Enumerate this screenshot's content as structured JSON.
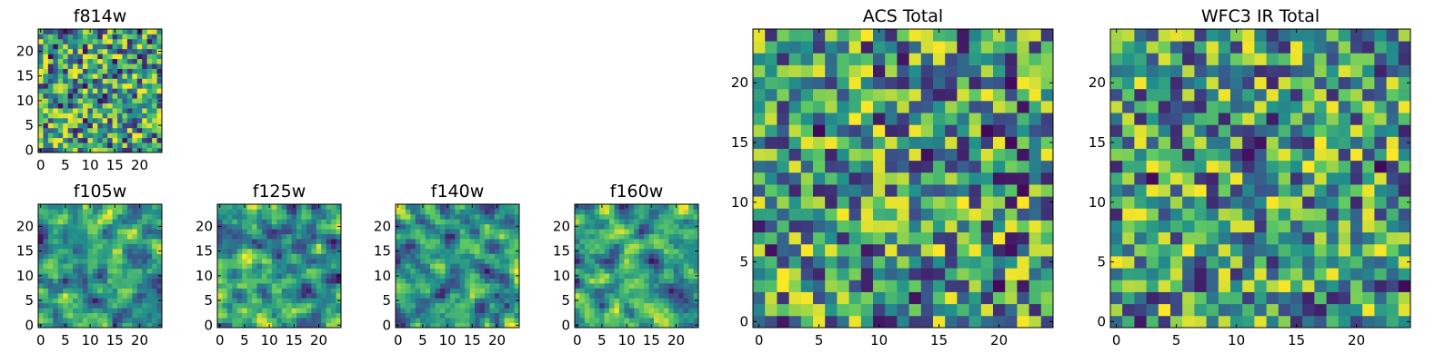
{
  "chart_data": [
    {
      "type": "heatmap",
      "title": "f814w",
      "grid": [
        25,
        25
      ],
      "seed": 11,
      "smooth": 0,
      "xticks": [
        "0",
        "5",
        "10",
        "15",
        "20"
      ],
      "yticks": [
        "0",
        "5",
        "10",
        "15",
        "20"
      ],
      "xlim": [
        -0.5,
        24.5
      ],
      "ylim": [
        -0.5,
        24.5
      ],
      "colormap": "viridis"
    },
    {
      "type": "heatmap",
      "title": "f105w",
      "grid": [
        25,
        25
      ],
      "seed": 23,
      "smooth": 1,
      "xticks": [
        "0",
        "5",
        "10",
        "15",
        "20"
      ],
      "yticks": [
        "0",
        "5",
        "10",
        "15",
        "20"
      ],
      "xlim": [
        -0.5,
        24.5
      ],
      "ylim": [
        -0.5,
        24.5
      ],
      "colormap": "viridis"
    },
    {
      "type": "heatmap",
      "title": "f125w",
      "grid": [
        25,
        25
      ],
      "seed": 37,
      "smooth": 1,
      "xticks": [
        "0",
        "5",
        "10",
        "15",
        "20"
      ],
      "yticks": [
        "0",
        "5",
        "10",
        "15",
        "20"
      ],
      "xlim": [
        -0.5,
        24.5
      ],
      "ylim": [
        -0.5,
        24.5
      ],
      "colormap": "viridis"
    },
    {
      "type": "heatmap",
      "title": "f140w",
      "grid": [
        25,
        25
      ],
      "seed": 41,
      "smooth": 1,
      "xticks": [
        "0",
        "5",
        "10",
        "15",
        "20"
      ],
      "yticks": [
        "0",
        "5",
        "10",
        "15",
        "20"
      ],
      "xlim": [
        -0.5,
        24.5
      ],
      "ylim": [
        -0.5,
        24.5
      ],
      "colormap": "viridis"
    },
    {
      "type": "heatmap",
      "title": "f160w",
      "grid": [
        25,
        25
      ],
      "seed": 53,
      "smooth": 1,
      "xticks": [
        "0",
        "5",
        "10",
        "15",
        "20"
      ],
      "yticks": [
        "0",
        "5",
        "10",
        "15",
        "20"
      ],
      "xlim": [
        -0.5,
        24.5
      ],
      "ylim": [
        -0.5,
        24.5
      ],
      "colormap": "viridis"
    },
    {
      "type": "heatmap",
      "title": "ACS Total",
      "grid": [
        25,
        25
      ],
      "seed": 67,
      "smooth": 0,
      "xticks": [
        "0",
        "5",
        "10",
        "15",
        "20"
      ],
      "yticks": [
        "0",
        "5",
        "10",
        "15",
        "20"
      ],
      "xlim": [
        -0.5,
        24.5
      ],
      "ylim": [
        -0.5,
        24.5
      ],
      "colormap": "viridis"
    },
    {
      "type": "heatmap",
      "title": "WFC3 IR Total",
      "grid": [
        25,
        25
      ],
      "seed": 79,
      "smooth": 0,
      "xticks": [
        "0",
        "5",
        "10",
        "15",
        "20"
      ],
      "yticks": [
        "0",
        "5",
        "10",
        "15",
        "20"
      ],
      "xlim": [
        -0.5,
        24.5
      ],
      "ylim": [
        -0.5,
        24.5
      ],
      "colormap": "viridis"
    }
  ],
  "colors": {
    "viridis": [
      "#440154",
      "#3b528b",
      "#21918c",
      "#5ec962",
      "#fde725"
    ]
  }
}
